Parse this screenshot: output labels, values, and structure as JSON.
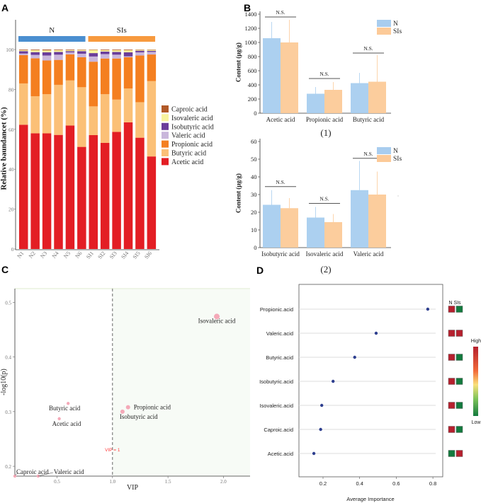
{
  "panel_labels": {
    "a": "A",
    "b": "B",
    "c": "C",
    "d": "D"
  },
  "chart_data": [
    {
      "panel": "A",
      "type": "bar",
      "stacked": true,
      "ylabel": "Relative baundancet (%)",
      "ylim": [
        0,
        100
      ],
      "yticks": [
        "0",
        "20",
        "40",
        "60",
        "80",
        "100"
      ],
      "groups": [
        {
          "label": "N",
          "color": "#4a8fd0"
        },
        {
          "label": "SIs",
          "color": "#f79a3e"
        }
      ],
      "categories": [
        "N1",
        "N2",
        "N3",
        "N4",
        "N5",
        "N6",
        "SI1",
        "SI2",
        "SI3",
        "SI4",
        "SI5",
        "SI6"
      ],
      "series": [
        {
          "name": "Acetic acid",
          "color": "#e31e24",
          "values": [
            62.3,
            58.0,
            58.0,
            57.2,
            61.9,
            51.2,
            57.1,
            53.2,
            58.7,
            63.5,
            55.8,
            46.4
          ]
        },
        {
          "name": "Butyric acid",
          "color": "#fbc077",
          "values": [
            20.7,
            18.6,
            19.6,
            25.1,
            22.6,
            29.9,
            14.4,
            24.4,
            16.2,
            17.0,
            17.8,
            37.8
          ]
        },
        {
          "name": "Propionic acid",
          "color": "#f47f20",
          "values": [
            14.2,
            19.0,
            16.9,
            12.5,
            13.1,
            15.0,
            22.4,
            17.9,
            20.6,
            15.6,
            23.4,
            13.3
          ]
        },
        {
          "name": "Valeric acid",
          "color": "#c9b6db",
          "values": [
            0.8,
            1.7,
            2.5,
            2.6,
            1.0,
            1.8,
            2.6,
            2.2,
            1.9,
            0.5,
            1.6,
            1.3
          ]
        },
        {
          "name": "Isobutyric acid",
          "color": "#6a3d9a",
          "values": [
            1.2,
            1.4,
            1.6,
            1.4,
            0.6,
            1.3,
            1.7,
            1.3,
            1.4,
            2.0,
            0.8,
            0.5
          ]
        },
        {
          "name": "Isovaleric acid",
          "color": "#f8f39e",
          "values": [
            0.5,
            1.0,
            1.0,
            0.9,
            0.5,
            0.6,
            1.6,
            0.7,
            0.9,
            1.1,
            0.4,
            0.5
          ]
        },
        {
          "name": "Caproic acid",
          "color": "#b15928",
          "values": [
            0.3,
            0.3,
            0.4,
            0.3,
            0.3,
            0.2,
            0.2,
            0.3,
            0.3,
            0.3,
            0.2,
            0.2
          ]
        }
      ],
      "legend_order": [
        "Caproic acid",
        "Isovaleric acid",
        "Isobutyric acid",
        "Valeric acid",
        "Propionic acid",
        "Butyric acid",
        "Acetic acid"
      ]
    },
    {
      "panel": "B(1)",
      "type": "bar",
      "caption": "(1)",
      "ylabel": "Content (μg/g)",
      "ylim": [
        0,
        1400
      ],
      "yticks": [
        "0",
        "200",
        "400",
        "600",
        "800",
        "1000",
        "1200",
        "1400"
      ],
      "categories": [
        "Acetic acid",
        "Propionic acid",
        "Butyric acid"
      ],
      "series": [
        {
          "name": "N",
          "color": "#a8cdef",
          "values": [
            1060,
            275,
            425
          ],
          "error_upper": [
            1290,
            370,
            570
          ]
        },
        {
          "name": "SIs",
          "color": "#fcca98",
          "values": [
            1000,
            330,
            445
          ],
          "error_upper": [
            1320,
            440,
            820
          ]
        }
      ],
      "significance": [
        "N.S.",
        "N.S.",
        "N.S."
      ],
      "sig_level": [
        1360,
        490,
        850
      ]
    },
    {
      "panel": "B(2)",
      "type": "bar",
      "caption": "(2)",
      "ylabel": "Content (μg/g)",
      "ylim": [
        0,
        60
      ],
      "yticks": [
        "0",
        "10",
        "20",
        "30",
        "40",
        "50",
        "60"
      ],
      "categories": [
        "Isobutyric acid",
        "Isovaleric acid",
        "Valeric acid"
      ],
      "series": [
        {
          "name": "N",
          "color": "#a8cdef",
          "values": [
            24.2,
            17.0,
            32.5
          ],
          "error_upper": [
            32.5,
            23,
            49
          ]
        },
        {
          "name": "SIs",
          "color": "#fcca98",
          "values": [
            22.3,
            14.4,
            30.0
          ],
          "error_upper": [
            28,
            19,
            43
          ]
        }
      ],
      "significance": [
        "N.S.",
        "N.S.",
        "N.S."
      ],
      "sig_level": [
        34.5,
        25,
        50.5
      ]
    },
    {
      "panel": "C",
      "type": "scatter",
      "xlabel": "VIP",
      "ylabel": "-log10(p)",
      "xlim": [
        0.12,
        2.24
      ],
      "ylim": [
        0.182,
        0.525
      ],
      "xticks": [
        {
          "v": 0.5,
          "label": "0.5"
        },
        {
          "v": 1.0,
          "label": "1.0"
        },
        {
          "v": 1.5,
          "label": "1.5"
        },
        {
          "v": 2.0,
          "label": "2.0"
        }
      ],
      "yticks": [
        {
          "v": 0.2,
          "label": "0.2"
        },
        {
          "v": 0.3,
          "label": "0.3"
        },
        {
          "v": 0.4,
          "label": "0.4"
        },
        {
          "v": 0.5,
          "label": "0.5"
        }
      ],
      "threshold": {
        "x": 1.0,
        "label": "VIP = 1",
        "color": "#ff3b3b"
      },
      "point_color": "#f4a9b8",
      "points": [
        {
          "name": "Isovaleric acid",
          "x": 1.94,
          "y": 0.474,
          "size": "large"
        },
        {
          "name": "Propionic acid",
          "x": 1.14,
          "y": 0.308,
          "size": "medium"
        },
        {
          "name": "Isobutyric acid",
          "x": 1.09,
          "y": 0.3,
          "size": "medium"
        },
        {
          "name": "Butyric acid",
          "x": 0.6,
          "y": 0.315,
          "size": "small"
        },
        {
          "name": "Acetic acid",
          "x": 0.52,
          "y": 0.287,
          "size": "small"
        },
        {
          "name": "Valeric acid",
          "x": 0.33,
          "y": 0.182,
          "size": "small"
        },
        {
          "name": "Caproic acid",
          "x": 0.12,
          "y": 0.182,
          "size": "small"
        }
      ]
    },
    {
      "panel": "D",
      "type": "scatter",
      "subtype": "dot-plot",
      "xlabel": "Average Importance",
      "xlim": [
        0.07,
        0.85
      ],
      "xticks": [
        {
          "v": 0.2,
          "label": "0.2"
        },
        {
          "v": 0.4,
          "label": "0.4"
        },
        {
          "v": 0.6,
          "label": "0.6"
        },
        {
          "v": 0.8,
          "label": "0.8"
        }
      ],
      "categories": [
        "Propionic.acid",
        "Valeric.acid",
        "Butyric.acid",
        "Isobutyric.acid",
        "Isovaleric.acid",
        "Caproic.acid",
        "Acetic.acid"
      ],
      "values": [
        0.772,
        0.49,
        0.373,
        0.255,
        0.193,
        0.187,
        0.15
      ],
      "point_color": "#2e3f8f",
      "heatmap": {
        "columns": [
          "N",
          "SIs"
        ],
        "column_header": "N SIs",
        "levels": [
          [
            "high",
            "low"
          ],
          [
            "high",
            "high"
          ],
          [
            "high",
            "low"
          ],
          [
            "high",
            "low"
          ],
          [
            "high",
            "low"
          ],
          [
            "high",
            "low"
          ],
          [
            "low",
            "high"
          ]
        ],
        "high_color": "#b5202e",
        "low_color": "#137a3e",
        "scale_labels": {
          "high": "High",
          "low": "Low"
        }
      }
    }
  ]
}
